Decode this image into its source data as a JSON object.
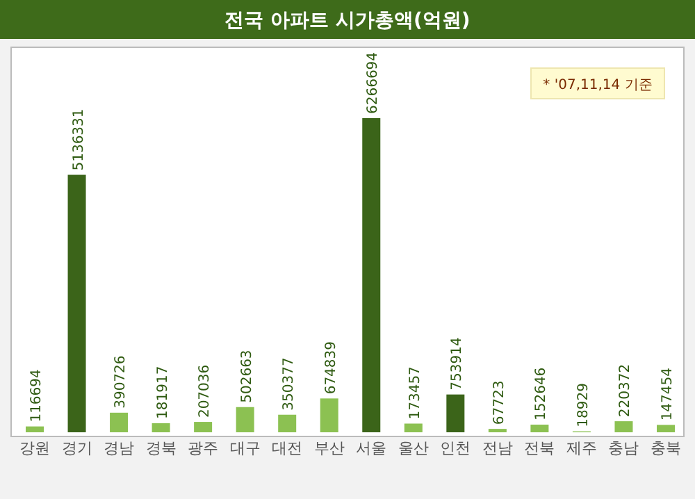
{
  "chart_data": {
    "type": "bar",
    "title": "전국 아파트 시가총액(억원)",
    "categories": [
      "강원",
      "경기",
      "경남",
      "경북",
      "광주",
      "대구",
      "대전",
      "부산",
      "서울",
      "울산",
      "인천",
      "전남",
      "전북",
      "제주",
      "충남",
      "충북"
    ],
    "values": [
      116694,
      5136331,
      390726,
      181917,
      207036,
      502663,
      350377,
      674839,
      6266694,
      173457,
      753914,
      67723,
      152646,
      18929,
      220372,
      147454
    ],
    "colors": [
      "#8cc152",
      "#3b6419",
      "#8cc152",
      "#8cc152",
      "#8cc152",
      "#8cc152",
      "#8cc152",
      "#8cc152",
      "#3b6419",
      "#8cc152",
      "#3b6419",
      "#8cc152",
      "#8cc152",
      "#8cc152",
      "#8cc152",
      "#8cc152"
    ],
    "data_labels": true,
    "annotations": [
      "* '07,11,14 기준"
    ]
  }
}
